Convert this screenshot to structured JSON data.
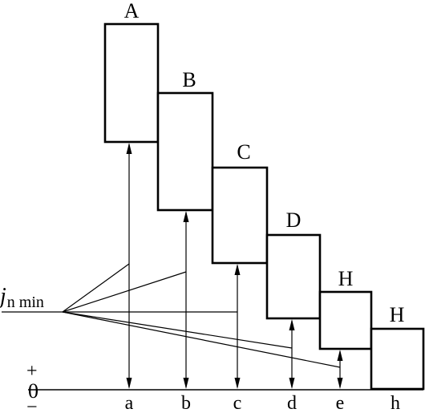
{
  "zone_labels": [
    "A",
    "B",
    "C",
    "D",
    "H",
    "H"
  ],
  "deviation_labels": [
    "a",
    "b",
    "c",
    "d",
    "e",
    "h"
  ],
  "symbol": {
    "main": "j",
    "sub": "n min"
  },
  "zero_line": {
    "plus": "+",
    "zero": "0",
    "minus": "−"
  },
  "colors": {
    "line": "#000000",
    "background": "#ffffff"
  }
}
